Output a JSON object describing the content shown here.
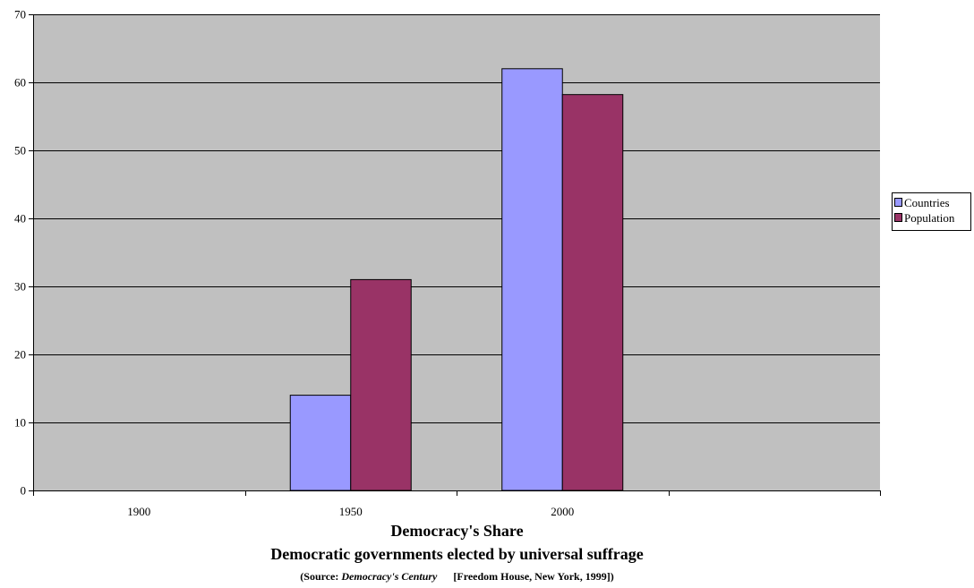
{
  "chart_data": {
    "type": "bar",
    "title": "Democracy's Share",
    "subtitle": "Democratic governments elected by universal suffrage",
    "source": {
      "open": "(Source: ",
      "work": "Democracy's Century",
      "publisher": "[Freedom House, New York, 1999])"
    },
    "categories": [
      "1900",
      "1950",
      "2000",
      ""
    ],
    "series": [
      {
        "name": "Countries",
        "color": "#9999ff",
        "values": [
          0,
          14,
          62,
          null
        ]
      },
      {
        "name": "Population",
        "color": "#993366",
        "values": [
          0,
          31,
          58.2,
          null
        ]
      }
    ],
    "yticks": [
      "0",
      "10",
      "20",
      "30",
      "40",
      "50",
      "60",
      "70"
    ],
    "ylim": [
      0,
      70
    ],
    "ystep": 10,
    "xlabel": "",
    "ylabel": "",
    "grid": true,
    "legend_position": "right",
    "plot_background": "#c0c0c0"
  }
}
